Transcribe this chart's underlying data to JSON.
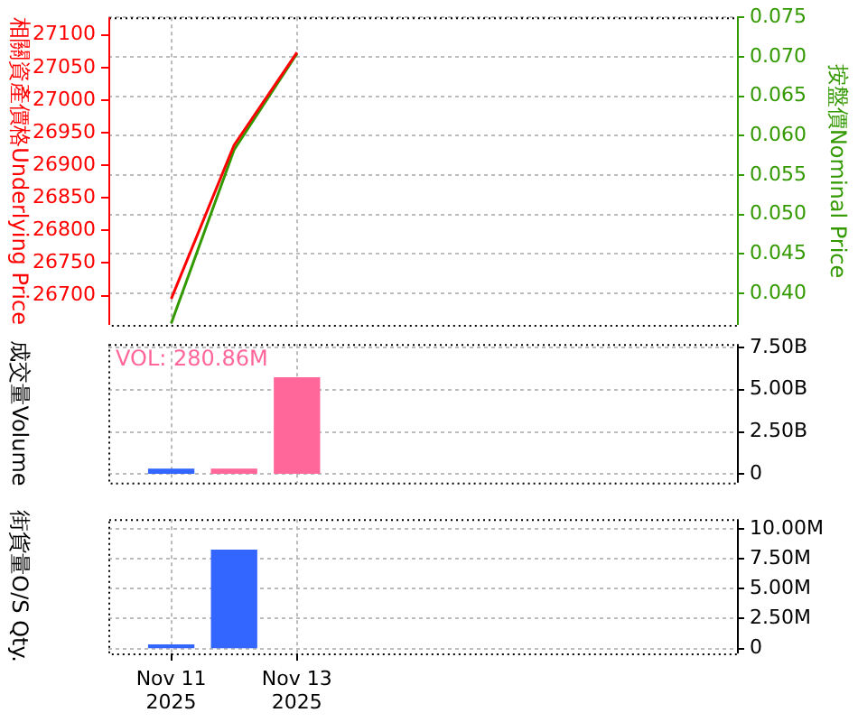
{
  "chart_data": [
    {
      "type": "line",
      "ylabel": "相關資產價格Underlying Price",
      "y2label": "按盤價Nominal Price",
      "x": [
        "2025-11-11",
        "2025-11-12",
        "2025-11-13"
      ],
      "xlim": [
        "2025-11-10",
        "2025-11-20"
      ],
      "xticks": [
        {
          "value": "2025-11-11",
          "label": null
        },
        {
          "value": "2025-11-13",
          "label": null
        }
      ],
      "ylim": [
        26655,
        27127
      ],
      "yticks": [
        26700,
        26750,
        26800,
        26850,
        26900,
        26950,
        27000,
        27050,
        27100
      ],
      "y2lim": [
        0.036,
        0.075
      ],
      "y2ticks": [
        {
          "value": 0.04,
          "label": "0.040"
        },
        {
          "value": 0.045,
          "label": "0.045"
        },
        {
          "value": 0.05,
          "label": "0.050"
        },
        {
          "value": 0.055,
          "label": "0.055"
        },
        {
          "value": 0.06,
          "label": "0.060"
        },
        {
          "value": 0.065,
          "label": "0.065"
        },
        {
          "value": 0.07,
          "label": "0.070"
        },
        {
          "value": 0.075,
          "label": "0.075"
        }
      ],
      "grid": true,
      "tick_labels": "y",
      "series": [
        {
          "color": "#ff0000",
          "values": [
            26695,
            26931,
            27073
          ]
        },
        {
          "color": "#339900",
          "axis": "y2",
          "values": [
            0.0362,
            0.0582,
            0.0704
          ]
        }
      ]
    },
    {
      "type": "bar",
      "ylabel": "成交量Volume",
      "annotations": [
        "VOL: 280.86M"
      ],
      "x": [
        "2025-11-11",
        "2025-11-12",
        "2025-11-13"
      ],
      "xlim": [
        "2025-11-10",
        "2025-11-20"
      ],
      "xticks": [
        {
          "value": "2025-11-11",
          "label": null
        },
        {
          "value": "2025-11-13",
          "label": null
        }
      ],
      "ylim": [
        -0.5,
        7.7
      ],
      "yticks": [
        0,
        {
          "value": 2.5,
          "label": "2.50B"
        },
        {
          "value": 5,
          "label": "5.00B"
        },
        {
          "value": 7.5,
          "label": "7.50B"
        }
      ],
      "grid": true,
      "tick_labels": "y",
      "values": [
        0.3,
        0.3,
        5.7
      ],
      "colors": [
        "#3366ff",
        "#ff6699",
        "#ff6699"
      ]
    },
    {
      "type": "bar",
      "ylabel": "街貨量O/S Qty.",
      "x": [
        "2025-11-11",
        "2025-11-12"
      ],
      "xlim": [
        "2025-11-10",
        "2025-11-20"
      ],
      "xticks": [
        {
          "value": "2025-11-11",
          "label": "Nov 11\n2025"
        },
        {
          "value": "2025-11-13",
          "label": "Nov 13\n2025"
        }
      ],
      "ylim": [
        -0.4,
        10.8
      ],
      "yticks": [
        0,
        {
          "value": 2.5,
          "label": "2.50M"
        },
        {
          "value": 5,
          "label": "5.00M"
        },
        {
          "value": 7.5,
          "label": "7.50M"
        },
        {
          "value": 10,
          "label": "10.00M"
        }
      ],
      "grid": true,
      "values": [
        0.3,
        8.2
      ],
      "colors": [
        "#3366ff",
        "#3366ff"
      ]
    }
  ]
}
